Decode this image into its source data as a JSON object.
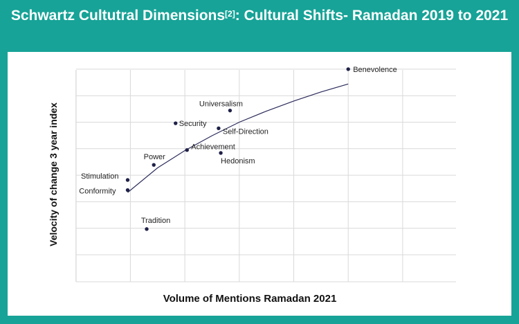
{
  "title": {
    "main": "Schwartz Cultutral Dimensions",
    "ref": "[2]",
    "rest": ": Cultural Shifts- Ramadan 2019 to 2021"
  },
  "chart_data": {
    "type": "scatter",
    "title": "Schwartz Cultutral Dimensions[2]: Cultural Shifts- Ramadan 2019 to 2021",
    "xlabel": "Volume of Mentions Ramadan 2021",
    "ylabel": "Velocity of change 3 year index",
    "xlim": [
      0,
      7
    ],
    "ylim": [
      0,
      7
    ],
    "grid": true,
    "legend": "none",
    "tick_labels_shown": false,
    "points": [
      {
        "label": "Benevolence",
        "x": 6.0,
        "y": 7.0
      },
      {
        "label": "Universalism",
        "x": 3.83,
        "y": 5.44
      },
      {
        "label": "Security",
        "x": 2.83,
        "y": 4.96
      },
      {
        "label": "Self-Direction",
        "x": 3.62,
        "y": 4.77
      },
      {
        "label": "Achievement",
        "x": 3.04,
        "y": 3.95
      },
      {
        "label": "Hedonism",
        "x": 3.66,
        "y": 3.84
      },
      {
        "label": "Power",
        "x": 2.43,
        "y": 3.39
      },
      {
        "label": "Stimulation",
        "x": 1.95,
        "y": 2.82
      },
      {
        "label": "Conformity",
        "x": 1.95,
        "y": 2.44
      },
      {
        "label": "Tradition",
        "x": 2.3,
        "y": 0.97
      }
    ],
    "trendline": {
      "type": "logarithmic",
      "x": [
        1.95,
        2.5,
        3.0,
        3.5,
        4.0,
        4.5,
        5.0,
        5.5,
        6.0
      ],
      "y": [
        2.35,
        3.28,
        3.93,
        4.49,
        5.0,
        5.42,
        5.8,
        6.14,
        6.44
      ]
    }
  }
}
